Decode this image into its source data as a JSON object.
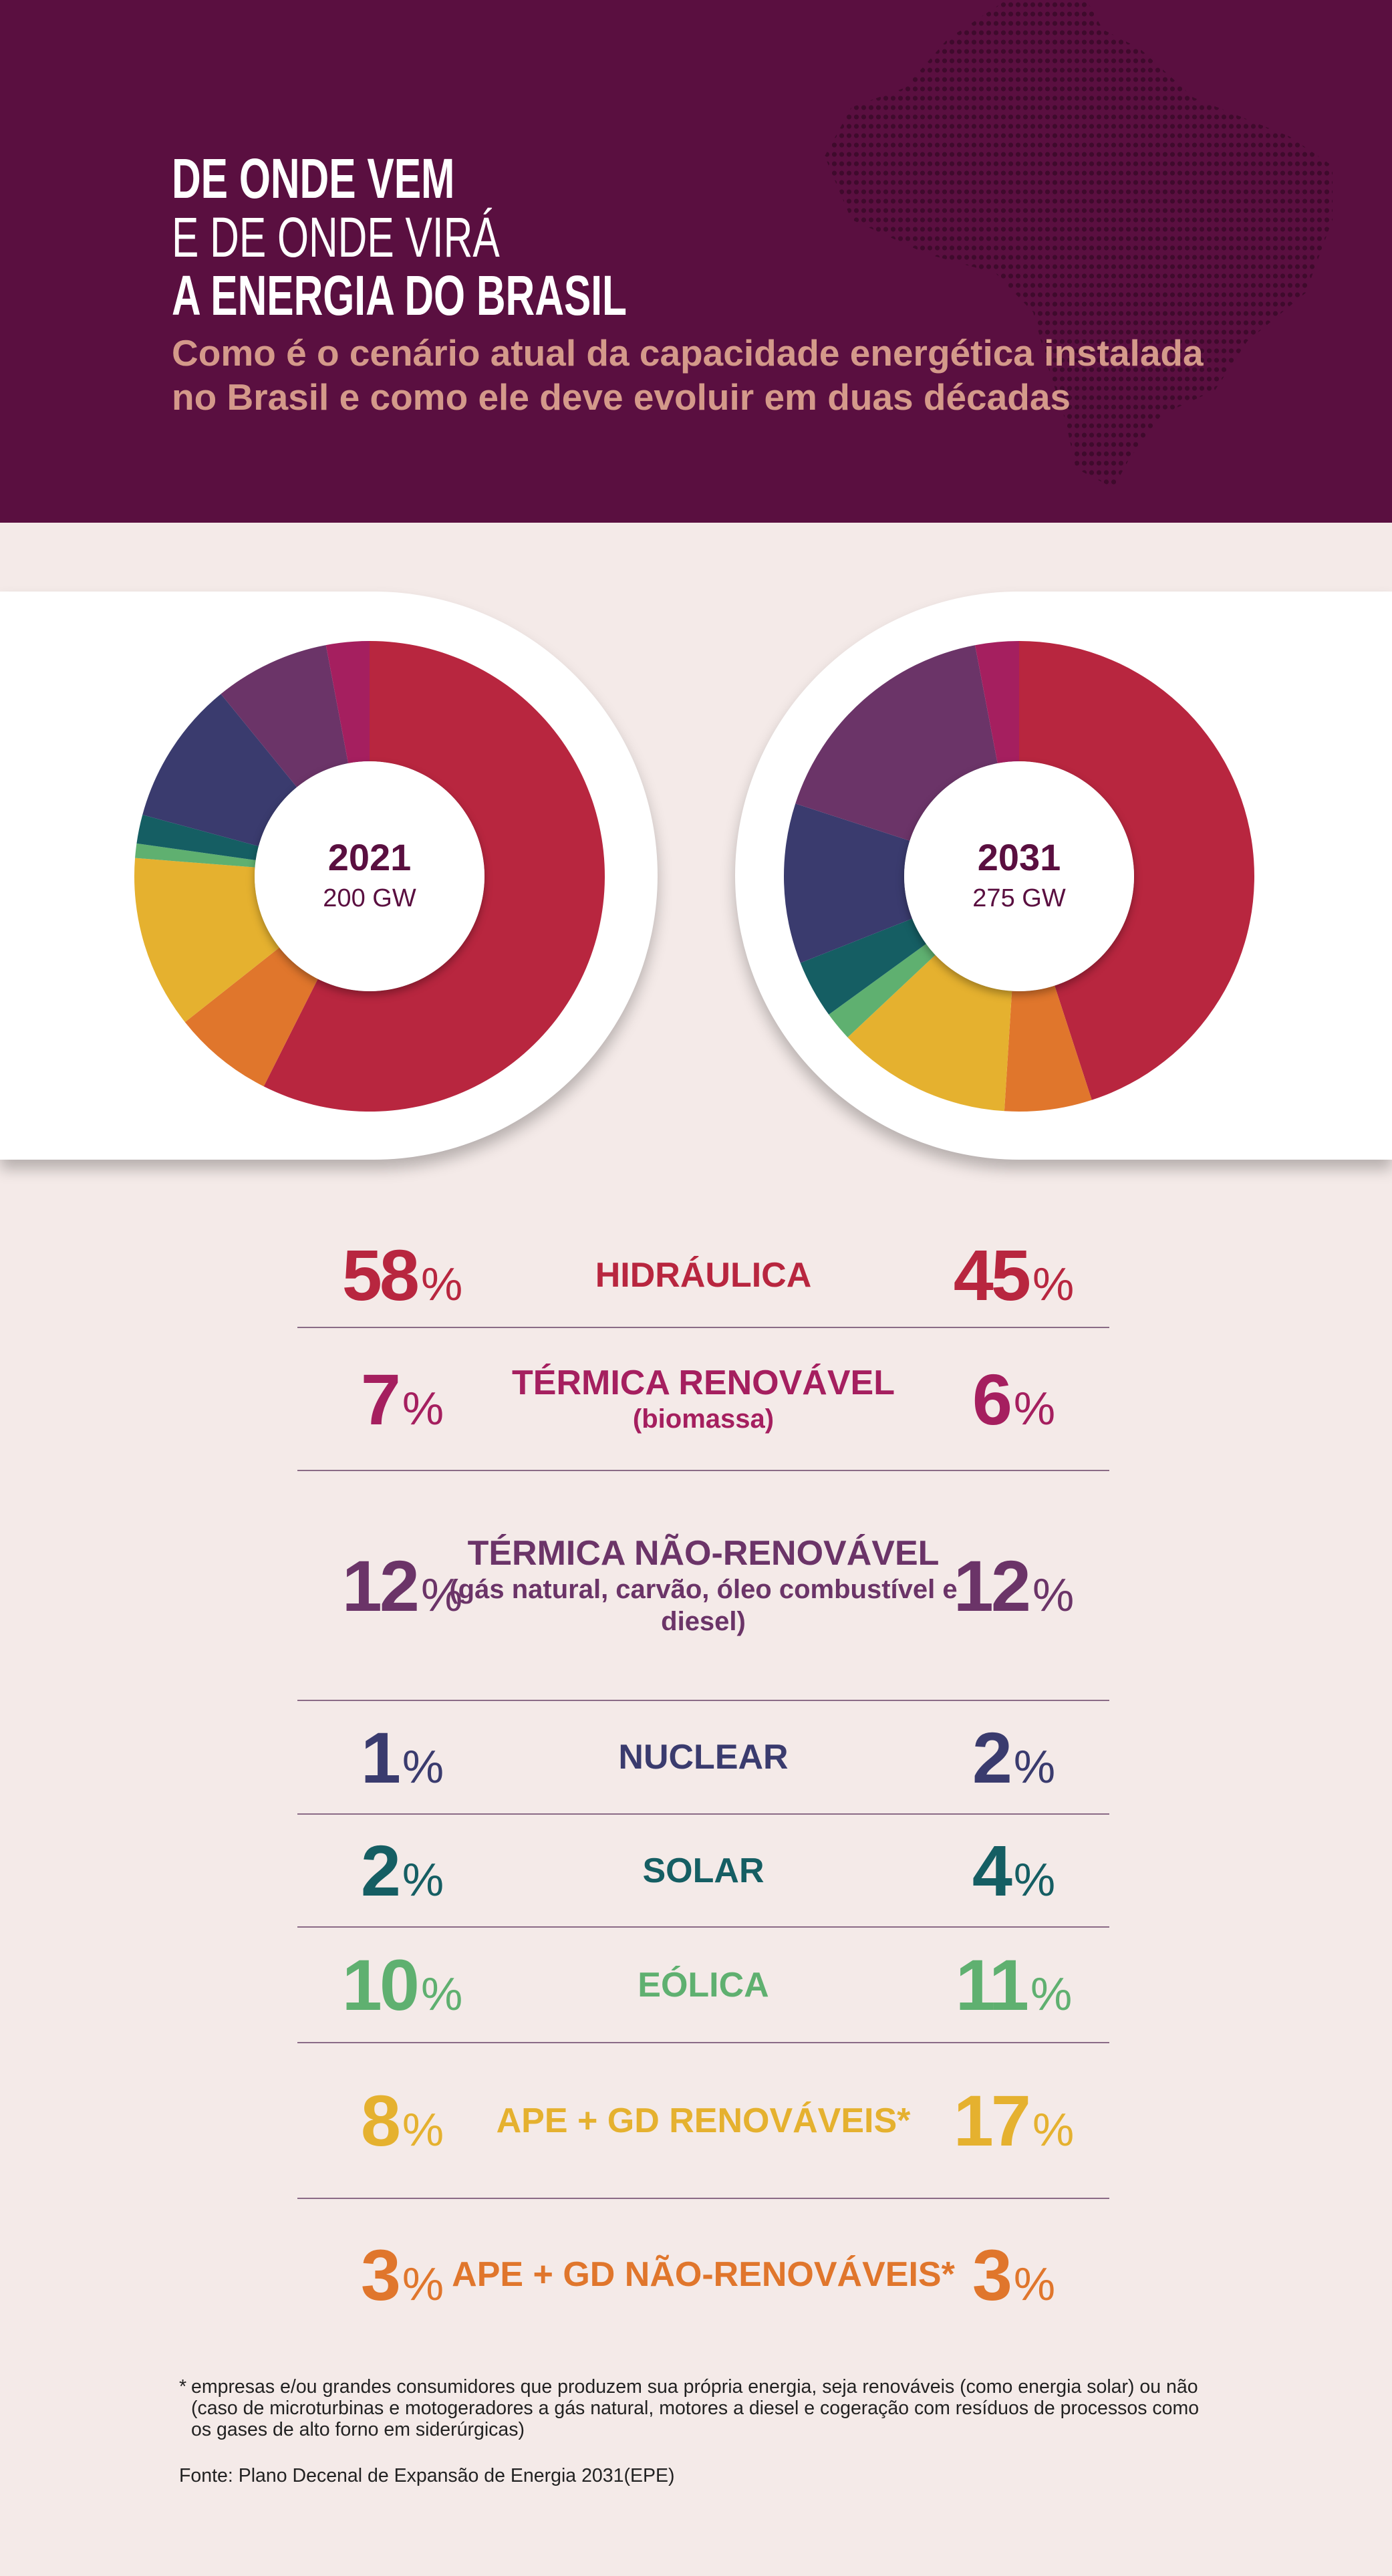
{
  "header": {
    "title_line1": "DE ONDE VEM",
    "title_line2": "E DE ONDE VIRÁ",
    "title_line3": "A ENERGIA DO BRASIL",
    "subtitle": "Como é o cenário atual da capacidade energética instalada no Brasil e como ele deve evoluir em duas décadas"
  },
  "colors": {
    "header_bg": "#5a0f40",
    "page_bg": "#f4eae8",
    "subtitle": "#d4998a"
  },
  "chart_data": [
    {
      "type": "pie",
      "title": "2021",
      "subtitle": "200 GW",
      "categories": [
        "Hidráulica",
        "Térmica renovável",
        "Térmica não-renovável",
        "Nuclear",
        "Solar",
        "Eólica",
        "APE + GD renováveis",
        "APE + GD não-renováveis"
      ],
      "values": [
        58,
        7,
        12,
        1,
        2,
        10,
        8,
        3
      ],
      "slice_colors": [
        "#b8263f",
        "#e0762c",
        "#e5b12f",
        "#5fb070",
        "#155e63",
        "#3a3b6e",
        "#6b3468",
        "#a51f5f"
      ],
      "unit": "%"
    },
    {
      "type": "pie",
      "title": "2031",
      "subtitle": "275 GW",
      "categories": [
        "Hidráulica",
        "Térmica renovável",
        "Térmica não-renovável",
        "Nuclear",
        "Solar",
        "Eólica",
        "APE + GD renováveis",
        "APE + GD não-renováveis"
      ],
      "values": [
        45,
        6,
        12,
        2,
        4,
        11,
        17,
        3
      ],
      "slice_colors": [
        "#b8263f",
        "#e0762c",
        "#e5b12f",
        "#5fb070",
        "#155e63",
        "#3a3b6e",
        "#6b3468",
        "#a51f5f"
      ],
      "unit": "%"
    }
  ],
  "table": {
    "pct_sign": "%",
    "rows": [
      {
        "label": "HIDRÁULICA",
        "sub": "",
        "v2021": "58",
        "v2031": "45",
        "color": "#b8263f"
      },
      {
        "label": "TÉRMICA RENOVÁVEL",
        "sub": "(biomassa)",
        "v2021": "7",
        "v2031": "6",
        "color": "#a51f5f"
      },
      {
        "label": "TÉRMICA NÃO-RENOVÁVEL",
        "sub": "(gás natural, carvão, óleo combustível e diesel)",
        "v2021": "12",
        "v2031": "12",
        "color": "#6b3468"
      },
      {
        "label": "NUCLEAR",
        "sub": "",
        "v2021": "1",
        "v2031": "2",
        "color": "#3a3b6e"
      },
      {
        "label": "SOLAR",
        "sub": "",
        "v2021": "2",
        "v2031": "4",
        "color": "#155e63"
      },
      {
        "label": "EÓLICA",
        "sub": "",
        "v2021": "10",
        "v2031": "11",
        "color": "#5fb070"
      },
      {
        "label": "APE + GD RENOVÁVEIS*",
        "sub": "",
        "v2021": "8",
        "v2031": "17",
        "color": "#e5b12f"
      },
      {
        "label": "APE + GD NÃO-RENOVÁVEIS*",
        "sub": "",
        "v2021": "3",
        "v2031": "3",
        "color": "#e0762c"
      }
    ]
  },
  "footnote": {
    "asterisk": "*",
    "text": "empresas e/ou grandes consumidores que produzem sua própria energia, seja renováveis (como energia solar) ou não (caso de microturbinas e motogeradores a gás natural, motores a diesel e cogeração com resíduos de processos como os gases de alto forno em siderúrgicas)"
  },
  "source": "Fonte: Plano Decenal de Expansão de Energia 2031(EPE)"
}
